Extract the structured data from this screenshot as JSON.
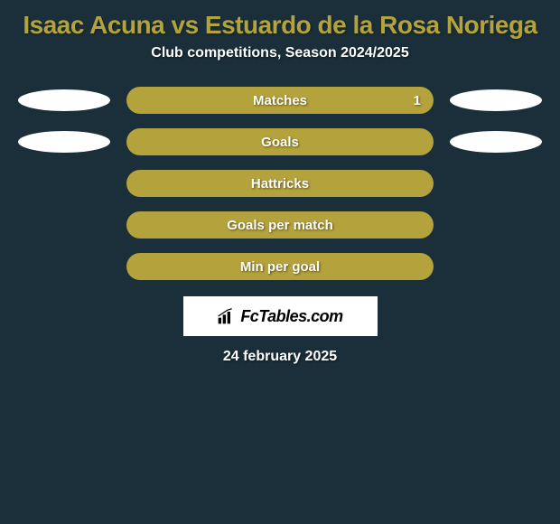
{
  "background_color": "#1a2f3a",
  "title": {
    "text": "Isaac Acuna vs Estuardo de la Rosa Noriega",
    "color": "#b4a23c",
    "fontsize": 28
  },
  "subtitle": {
    "text": "Club competitions, Season 2024/2025",
    "color": "#ffffff",
    "fontsize": 16
  },
  "bar_color": "#b4a23c",
  "ellipse_color": "#ffffff",
  "rows": [
    {
      "label": "Matches",
      "value": "1",
      "show_value": true,
      "left_ellipse": true,
      "right_ellipse": true,
      "left_indent": 0,
      "right_indent": 0
    },
    {
      "label": "Goals",
      "value": "",
      "show_value": false,
      "left_ellipse": true,
      "right_ellipse": true,
      "left_indent": 12,
      "right_indent": 12
    },
    {
      "label": "Hattricks",
      "value": "",
      "show_value": false,
      "left_ellipse": false,
      "right_ellipse": false,
      "left_indent": 0,
      "right_indent": 0
    },
    {
      "label": "Goals per match",
      "value": "",
      "show_value": false,
      "left_ellipse": false,
      "right_ellipse": false,
      "left_indent": 0,
      "right_indent": 0
    },
    {
      "label": "Min per goal",
      "value": "",
      "show_value": false,
      "left_ellipse": false,
      "right_ellipse": false,
      "left_indent": 0,
      "right_indent": 0
    }
  ],
  "logo": {
    "brand": "FcTables.com",
    "icon_name": "bar-chart-icon"
  },
  "date": "24 february 2025"
}
